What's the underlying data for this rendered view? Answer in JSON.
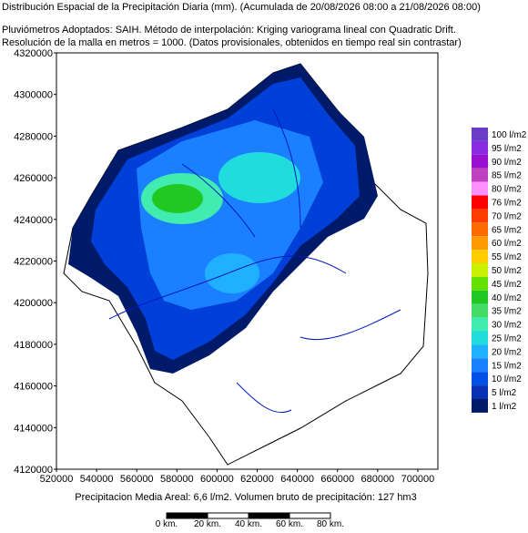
{
  "header": {
    "title": "Distribución Espacial de la Precipitación Diaria (mm). (Acumulada de 20/08/2026 08:00 a 21/08/2026 08:00)",
    "line2": "Pluviómetros Adoptados: SAIH.  Método de interpolación: Kriging variograma lineal con Quadratic Drift.",
    "line3": "Resolución de la malla en metros = 1000. (Datos provisionales, obtenidos en tiempo real sin contrastar)"
  },
  "map": {
    "xlim": [
      520000,
      710000
    ],
    "ylim": [
      4120000,
      4320000
    ],
    "xticks": [
      520000,
      540000,
      560000,
      580000,
      600000,
      620000,
      640000,
      660000,
      680000,
      700000
    ],
    "yticks": [
      4120000,
      4140000,
      4160000,
      4180000,
      4200000,
      4220000,
      4240000,
      4260000,
      4280000,
      4300000,
      4320000
    ]
  },
  "legend": {
    "items": [
      {
        "label": "100 l/m2",
        "color": "#6a3cc8"
      },
      {
        "label": "95 l/m2",
        "color": "#8a2be2"
      },
      {
        "label": "90 l/m2",
        "color": "#9a10d0"
      },
      {
        "label": "85 l/m2",
        "color": "#c040c0"
      },
      {
        "label": "80 l/m2",
        "color": "#ff90ff"
      },
      {
        "label": "76 l/m2",
        "color": "#ff0000"
      },
      {
        "label": "70 l/m2",
        "color": "#ff3c00"
      },
      {
        "label": "65 l/m2",
        "color": "#ff6a00"
      },
      {
        "label": "60 l/m2",
        "color": "#ff9a00"
      },
      {
        "label": "55 l/m2",
        "color": "#ffcc00"
      },
      {
        "label": "50 l/m2",
        "color": "#c8f000"
      },
      {
        "label": "45 l/m2",
        "color": "#66e000"
      },
      {
        "label": "40 l/m2",
        "color": "#22c822"
      },
      {
        "label": "35 l/m2",
        "color": "#44dc66"
      },
      {
        "label": "30 l/m2",
        "color": "#40ecb0"
      },
      {
        "label": "25 l/m2",
        "color": "#20dcdc"
      },
      {
        "label": "20 l/m2",
        "color": "#20b0ff"
      },
      {
        "label": "15 l/m2",
        "color": "#1a80ff"
      },
      {
        "label": "10 l/m2",
        "color": "#0050e8"
      },
      {
        "label": "5 l/m2",
        "color": "#0830b0"
      },
      {
        "label": "1 l/m2",
        "color": "#001a6a"
      }
    ]
  },
  "footer": {
    "summary": "Precipitacion Media Areal: 6,6 l/m2. Volumen bruto de precipitación: 127 hm3",
    "scale": [
      "0 km.",
      "20 km.",
      "40 km.",
      "60 km.",
      "80 km."
    ]
  }
}
